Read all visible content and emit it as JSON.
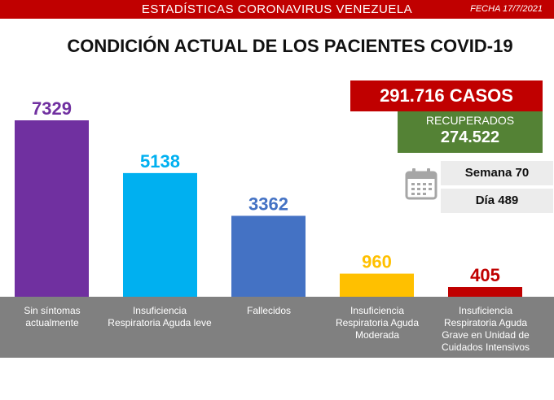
{
  "header": {
    "title": "ESTADÍSTICAS CORONAVIRUS VENEZUELA",
    "date": "FECHA 17/7/2021"
  },
  "page_title": "CONDICIÓN ACTUAL DE LOS PACIENTES COVID-19",
  "summary": {
    "casos": "291.716 CASOS",
    "recuperados_label": "RECUPERADOS",
    "recuperados_value": "274.522",
    "semana": "Semana 70",
    "dia": "Día 489"
  },
  "icons": {
    "calendar": "calendar-icon"
  },
  "chart_data": {
    "type": "bar",
    "categories": [
      "Sin síntomas actualmente",
      "Insuficiencia Respiratoria Aguda leve",
      "Fallecidos",
      "Insuficiencia Respiratoria Aguda Moderada",
      "Insuficiencia Respiratoria Aguda Grave en Unidad de Cuidados Intensivos"
    ],
    "values": [
      7329,
      5138,
      3362,
      960,
      405
    ],
    "labels": [
      "7329",
      "5138",
      "3362",
      "960",
      "405"
    ],
    "colors": [
      "#7030a0",
      "#00b0f0",
      "#4472c4",
      "#ffc000",
      "#c00000"
    ],
    "ylim": [
      0,
      7329
    ],
    "grid": false,
    "legend": "none"
  }
}
